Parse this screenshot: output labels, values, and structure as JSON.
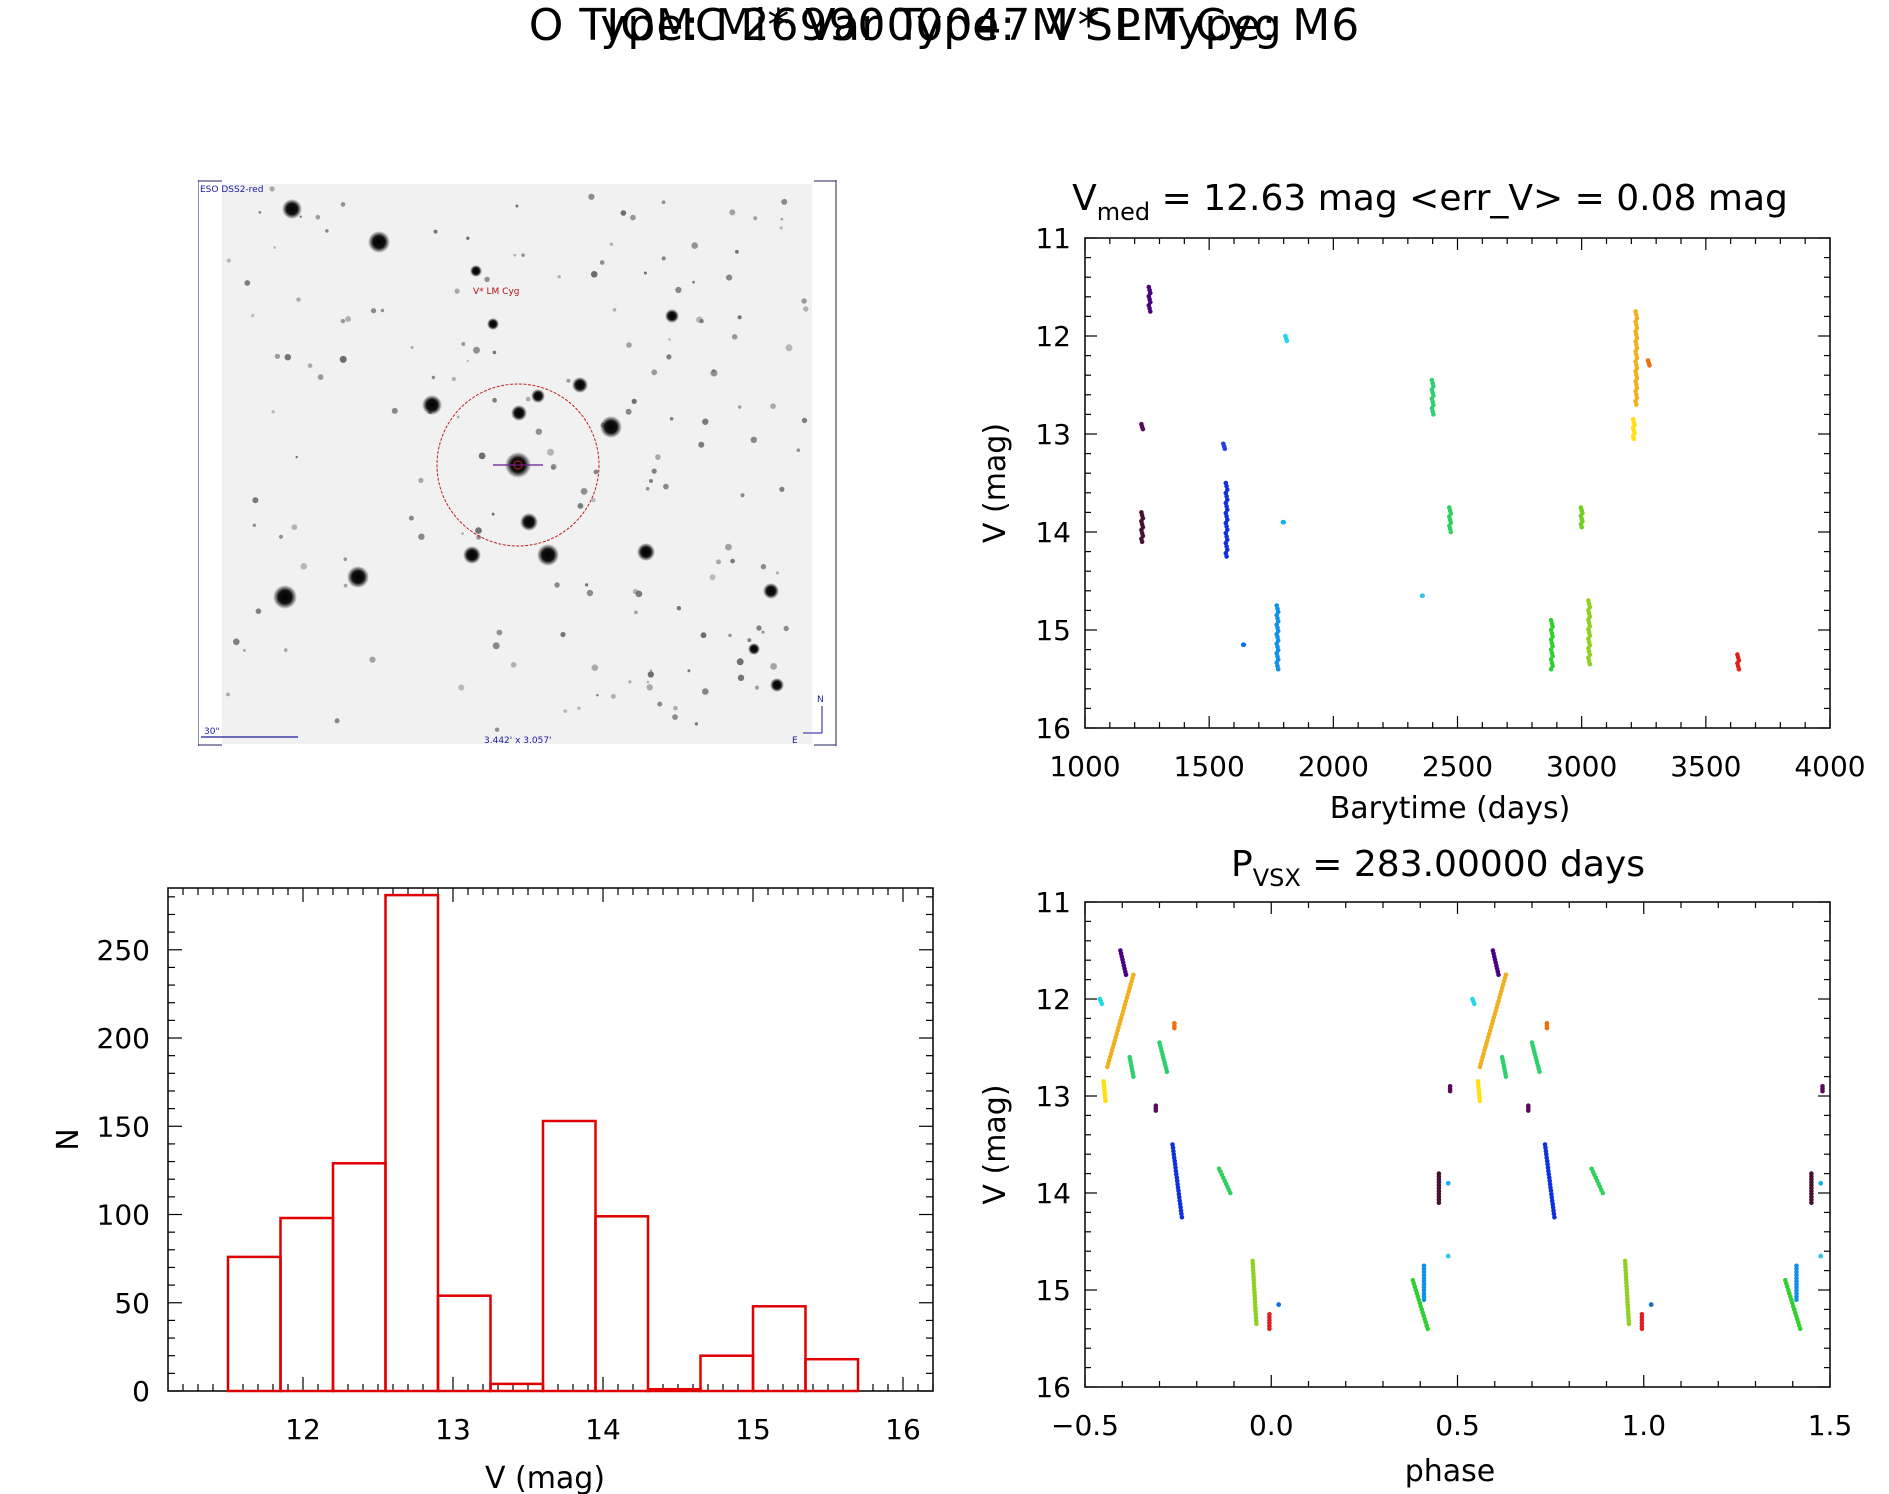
{
  "header": {
    "title": "IOMC 2699000047    V* LM Cyg",
    "subtitle": "O Type: Mi*  Var Type: M  SP Type: M6"
  },
  "finder_chart": {
    "survey_label": "ESO DSS2-red",
    "target_label": "V* LM Cyg",
    "scale_label": "30\"",
    "fov_label": "3.442' x 3.057'",
    "north_label": "N",
    "east_label": "E",
    "colors": {
      "frame": "#202060",
      "circle": "#c02020",
      "label": "#b01010",
      "blue": "#1a1a9a"
    }
  },
  "chart_data": [
    {
      "type": "scatter",
      "name": "light_curve",
      "title_prefix": "V",
      "title_sub": "med",
      "title_rest": " = 12.63 mag <err_V> = 0.08 mag",
      "xlabel": "Barytime (days)",
      "ylabel": "V (mag)",
      "xlim": [
        1000,
        4000
      ],
      "ylim": [
        16,
        11
      ],
      "xticks": [
        1000,
        1500,
        2000,
        2500,
        3000,
        3500,
        4000
      ],
      "yticks": [
        11,
        12,
        13,
        14,
        15,
        16
      ],
      "groups": [
        {
          "color": "#4b0082",
          "x": 1260,
          "y": [
            11.5,
            11.75
          ]
        },
        {
          "color": "#5a0a5a",
          "x": 1230,
          "y": [
            12.9,
            12.95
          ]
        },
        {
          "color": "#4a1030",
          "x": 1230,
          "y": [
            13.8,
            14.1
          ]
        },
        {
          "color": "#2040e0",
          "x": 1560,
          "y": [
            13.1,
            13.15
          ]
        },
        {
          "color": "#1030e0",
          "x": 1570,
          "y": [
            13.5,
            14.25
          ]
        },
        {
          "color": "#1070e0",
          "x": 1640,
          "y": [
            15.15,
            15.15
          ]
        },
        {
          "color": "#1090e8",
          "x": 1775,
          "y": [
            14.75,
            15.4
          ]
        },
        {
          "color": "#18b0f0",
          "x": 1800,
          "y": [
            13.9,
            13.9
          ]
        },
        {
          "color": "#20d8e8",
          "x": 1810,
          "y": [
            12.0,
            12.05
          ]
        },
        {
          "color": "#30c8e0",
          "x": 2360,
          "y": [
            14.65,
            14.65
          ]
        },
        {
          "color": "#30d070",
          "x": 2400,
          "y": [
            12.45,
            12.8
          ]
        },
        {
          "color": "#30d060",
          "x": 2470,
          "y": [
            13.75,
            14.0
          ]
        },
        {
          "color": "#30d030",
          "x": 2880,
          "y": [
            14.9,
            15.4
          ]
        },
        {
          "color": "#70d020",
          "x": 3000,
          "y": [
            13.75,
            13.95
          ]
        },
        {
          "color": "#90d020",
          "x": 3030,
          "y": [
            14.7,
            15.35
          ]
        },
        {
          "color": "#ffe010",
          "x": 3210,
          "y": [
            12.85,
            13.05
          ]
        },
        {
          "color": "#f0b020",
          "x": 3220,
          "y": [
            11.75,
            12.7
          ]
        },
        {
          "color": "#f07010",
          "x": 3270,
          "y": [
            12.25,
            12.3
          ]
        },
        {
          "color": "#e02020",
          "x": 3630,
          "y": [
            15.25,
            15.4
          ]
        }
      ]
    },
    {
      "type": "bar",
      "name": "histogram",
      "xlabel": "V (mag)",
      "ylabel": "N",
      "xlim": [
        11.1,
        16.2
      ],
      "ylim": [
        0,
        285
      ],
      "xticks": [
        12,
        13,
        14,
        15,
        16
      ],
      "yticks": [
        0,
        50,
        100,
        150,
        200,
        250
      ],
      "color": "#e00000",
      "bin_edges": [
        11.5,
        11.85,
        12.2,
        12.55,
        12.9,
        13.25,
        13.6,
        13.95,
        14.3,
        14.65,
        15.0,
        15.35,
        15.7
      ],
      "values": [
        76,
        98,
        129,
        281,
        54,
        4,
        153,
        99,
        1,
        20,
        48,
        18
      ]
    },
    {
      "type": "scatter",
      "name": "phased_light_curve",
      "title_prefix": "P",
      "title_sub": "VSX",
      "title_rest": " = 283.00000 days",
      "xlabel": "phase",
      "ylabel": "V (mag)",
      "xlim": [
        -0.5,
        1.5
      ],
      "ylim": [
        16,
        11
      ],
      "xticks": [
        -0.5,
        0.0,
        0.5,
        1.0,
        1.5
      ],
      "xtick_labels": [
        "−0.5",
        "0.0",
        "0.5",
        "1.0",
        "1.5"
      ],
      "yticks": [
        11,
        12,
        13,
        14,
        15,
        16
      ],
      "groups": [
        {
          "color": "#4b0082",
          "x": [
            -0.405,
            -0.39
          ],
          "y": [
            11.5,
            11.75
          ]
        },
        {
          "color": "#f0b020",
          "x": [
            -0.44,
            -0.37
          ],
          "y": [
            12.7,
            11.75
          ]
        },
        {
          "color": "#ffe010",
          "x": [
            -0.45,
            -0.445
          ],
          "y": [
            12.85,
            13.05
          ]
        },
        {
          "color": "#20d8e8",
          "x": [
            -0.46,
            -0.455
          ],
          "y": [
            12.0,
            12.05
          ]
        },
        {
          "color": "#30d070",
          "x": [
            -0.38,
            -0.37
          ],
          "y": [
            12.6,
            12.8
          ]
        },
        {
          "color": "#30d070",
          "x": [
            -0.3,
            -0.28
          ],
          "y": [
            12.45,
            12.75
          ]
        },
        {
          "color": "#f07010",
          "x": [
            -0.26,
            -0.26
          ],
          "y": [
            12.25,
            12.3
          ]
        },
        {
          "color": "#5a0a5a",
          "x": [
            -0.31,
            -0.31
          ],
          "y": [
            13.1,
            13.15
          ]
        },
        {
          "color": "#1030e0",
          "x": [
            -0.265,
            -0.24
          ],
          "y": [
            13.5,
            14.25
          ]
        },
        {
          "color": "#30d060",
          "x": [
            -0.14,
            -0.11
          ],
          "y": [
            13.75,
            14.0
          ]
        },
        {
          "color": "#90d020",
          "x": [
            -0.05,
            -0.04
          ],
          "y": [
            14.7,
            15.35
          ]
        },
        {
          "color": "#e02020",
          "x": [
            -0.005,
            -0.005
          ],
          "y": [
            15.25,
            15.4
          ]
        },
        {
          "color": "#1070e0",
          "x": [
            0.02,
            0.02
          ],
          "y": [
            15.15,
            15.15
          ]
        },
        {
          "color": "#30d030",
          "x": [
            0.38,
            0.42
          ],
          "y": [
            14.9,
            15.4
          ]
        },
        {
          "color": "#1090e8",
          "x": [
            0.41,
            0.41
          ],
          "y": [
            14.75,
            15.1
          ]
        },
        {
          "color": "#30c8e0",
          "x": [
            0.475,
            0.475
          ],
          "y": [
            14.65,
            14.65
          ]
        },
        {
          "color": "#4a1030",
          "x": [
            0.45,
            0.45
          ],
          "y": [
            13.8,
            14.1
          ]
        },
        {
          "color": "#18b0f0",
          "x": [
            0.475,
            0.475
          ],
          "y": [
            13.9,
            13.9
          ]
        },
        {
          "color": "#5a0a5a",
          "x": [
            0.48,
            0.48
          ],
          "y": [
            12.9,
            12.95
          ]
        },
        {
          "color": "#4b0082",
          "x": [
            0.595,
            0.61
          ],
          "y": [
            11.5,
            11.75
          ]
        },
        {
          "color": "#f0b020",
          "x": [
            0.56,
            0.63
          ],
          "y": [
            12.7,
            11.75
          ]
        },
        {
          "color": "#ffe010",
          "x": [
            0.555,
            0.56
          ],
          "y": [
            12.85,
            13.05
          ]
        },
        {
          "color": "#20d8e8",
          "x": [
            0.54,
            0.545
          ],
          "y": [
            12.0,
            12.05
          ]
        },
        {
          "color": "#30d070",
          "x": [
            0.62,
            0.63
          ],
          "y": [
            12.6,
            12.8
          ]
        },
        {
          "color": "#30d070",
          "x": [
            0.7,
            0.72
          ],
          "y": [
            12.45,
            12.75
          ]
        },
        {
          "color": "#f07010",
          "x": [
            0.74,
            0.74
          ],
          "y": [
            12.25,
            12.3
          ]
        },
        {
          "color": "#5a0a5a",
          "x": [
            0.69,
            0.69
          ],
          "y": [
            13.1,
            13.15
          ]
        },
        {
          "color": "#1030e0",
          "x": [
            0.735,
            0.76
          ],
          "y": [
            13.5,
            14.25
          ]
        },
        {
          "color": "#30d060",
          "x": [
            0.86,
            0.89
          ],
          "y": [
            13.75,
            14.0
          ]
        },
        {
          "color": "#90d020",
          "x": [
            0.95,
            0.96
          ],
          "y": [
            14.7,
            15.35
          ]
        },
        {
          "color": "#e02020",
          "x": [
            0.995,
            0.995
          ],
          "y": [
            15.25,
            15.4
          ]
        },
        {
          "color": "#1070e0",
          "x": [
            1.02,
            1.02
          ],
          "y": [
            15.15,
            15.15
          ]
        },
        {
          "color": "#30d030",
          "x": [
            1.38,
            1.42
          ],
          "y": [
            14.9,
            15.4
          ]
        },
        {
          "color": "#1090e8",
          "x": [
            1.41,
            1.41
          ],
          "y": [
            14.75,
            15.1
          ]
        },
        {
          "color": "#30c8e0",
          "x": [
            1.475,
            1.475
          ],
          "y": [
            14.65,
            14.65
          ]
        },
        {
          "color": "#4a1030",
          "x": [
            1.45,
            1.45
          ],
          "y": [
            13.8,
            14.1
          ]
        },
        {
          "color": "#18b0f0",
          "x": [
            1.475,
            1.475
          ],
          "y": [
            13.9,
            13.9
          ]
        },
        {
          "color": "#5a0a5a",
          "x": [
            1.48,
            1.48
          ],
          "y": [
            12.9,
            12.95
          ]
        }
      ]
    }
  ]
}
